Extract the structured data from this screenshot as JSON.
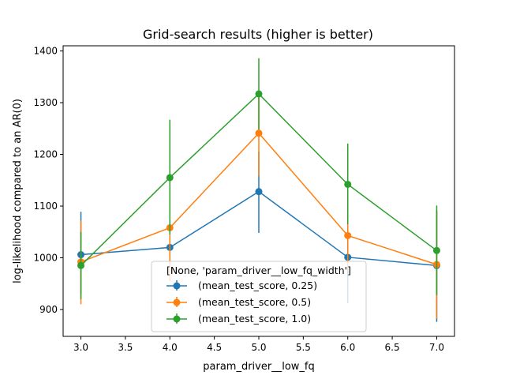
{
  "chart_data": {
    "type": "line",
    "title": "Grid-search results (higher is better)",
    "xlabel": "param_driver__low_fq",
    "ylabel": "log-likelihood compared to an AR(0)",
    "x": [
      3.0,
      4.0,
      5.0,
      6.0,
      7.0
    ],
    "xlim": [
      2.8,
      7.2
    ],
    "ylim": [
      848,
      1410
    ],
    "xticks": [
      "3.0",
      "3.5",
      "4.0",
      "4.5",
      "5.0",
      "5.5",
      "6.0",
      "6.5",
      "7.0"
    ],
    "xtick_values": [
      3.0,
      3.5,
      4.0,
      4.5,
      5.0,
      5.5,
      6.0,
      6.5,
      7.0
    ],
    "yticks": [
      "900",
      "1000",
      "1100",
      "1200",
      "1300",
      "1400"
    ],
    "ytick_values": [
      900,
      1000,
      1100,
      1200,
      1300,
      1400
    ],
    "grid": false,
    "legend": {
      "title": "[None, 'param_driver__low_fq_width']",
      "position": "lower-center"
    },
    "series": [
      {
        "name": "(mean_test_score, 0.25)",
        "color": "#1f77b4",
        "values": [
          1006,
          1020,
          1128,
          1001,
          985
        ],
        "err_low": [
          930,
          985,
          1048,
          912,
          876
        ],
        "err_high": [
          1089,
          1055,
          1205,
          1090,
          1092
        ]
      },
      {
        "name": "(mean_test_score, 0.5)",
        "color": "#ff7f0e",
        "values": [
          992,
          1058,
          1241,
          1043,
          987
        ],
        "err_low": [
          910,
          955,
          1158,
          980,
          882
        ],
        "err_high": [
          1072,
          1158,
          1322,
          1105,
          1090
        ]
      },
      {
        "name": "(mean_test_score, 1.0)",
        "color": "#2ca02c",
        "values": [
          985,
          1155,
          1317,
          1142,
          1014
        ],
        "err_low": [
          920,
          1045,
          1248,
          1065,
          928
        ],
        "err_high": [
          1050,
          1267,
          1386,
          1221,
          1101
        ]
      }
    ]
  }
}
